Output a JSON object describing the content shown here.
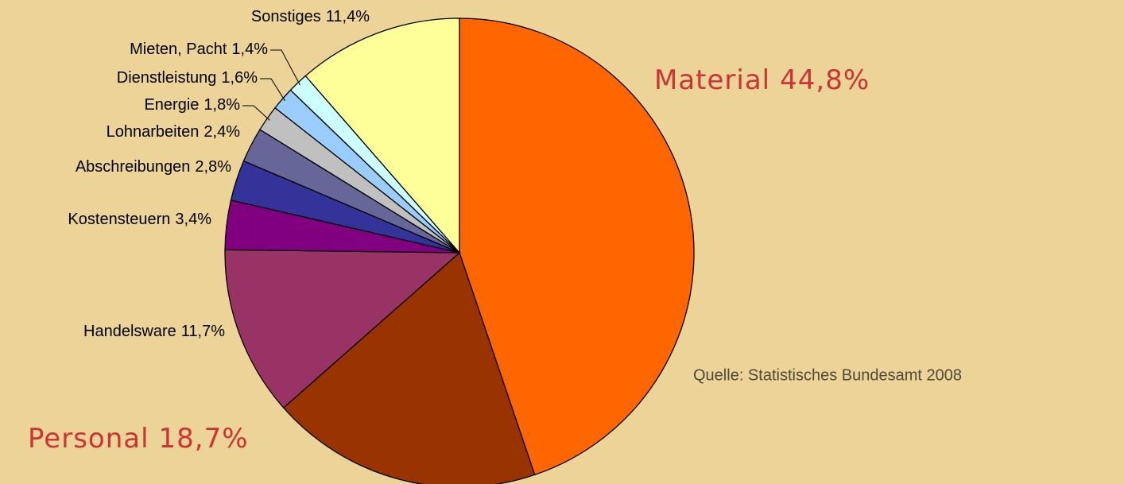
{
  "chart_data": {
    "type": "pie",
    "categories": [
      "Material",
      "Personal",
      "Handelsware",
      "Kostensteuern",
      "Abschreibungen",
      "Lohnarbeiten",
      "Energie",
      "Dienstleistung",
      "Mieten, Pacht",
      "Sonstiges"
    ],
    "values": [
      44.8,
      18.7,
      11.7,
      3.4,
      2.8,
      2.4,
      1.8,
      1.6,
      1.4,
      11.4
    ],
    "value_labels": [
      "44,8%",
      "18,7%",
      "11,7%",
      "3,4%",
      "2,8%",
      "2,4%",
      "1,8%",
      "1,6%",
      "1,4%",
      "11,4%"
    ],
    "colors": [
      "#ff6600",
      "#993300",
      "#993366",
      "#800080",
      "#333399",
      "#666699",
      "#c0c0c0",
      "#99ccff",
      "#ccffff",
      "#ffff99"
    ],
    "source": "Quelle: Statistisches Bundesamt 2008"
  }
}
